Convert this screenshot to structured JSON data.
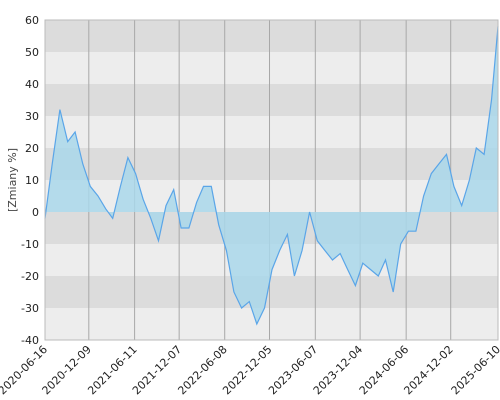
{
  "chart_data": {
    "type": "line",
    "y_label": "[Zmiany %]",
    "color": "#5aa5e8",
    "fill": "#a9d7ea",
    "grid": true,
    "x": [
      "2020-06-16",
      "2020-07-15",
      "2020-08-15",
      "2020-09-15",
      "2020-10-15",
      "2020-11-15",
      "2020-12-15",
      "2021-01-15",
      "2021-02-15",
      "2021-03-15",
      "2021-04-15",
      "2021-05-15",
      "2021-06-15",
      "2021-07-15",
      "2021-08-15",
      "2021-09-15",
      "2021-10-15",
      "2021-11-15",
      "2021-12-15",
      "2022-01-15",
      "2022-02-15",
      "2022-03-15",
      "2022-04-15",
      "2022-05-15",
      "2022-06-15",
      "2022-07-15",
      "2022-08-15",
      "2022-09-15",
      "2022-10-15",
      "2022-11-15",
      "2022-12-15",
      "2023-01-15",
      "2023-02-15",
      "2023-03-15",
      "2023-04-15",
      "2023-05-15",
      "2023-06-15",
      "2023-07-15",
      "2023-08-15",
      "2023-09-15",
      "2023-10-15",
      "2023-11-15",
      "2023-12-15",
      "2024-01-15",
      "2024-02-15",
      "2024-03-15",
      "2024-04-15",
      "2024-05-15",
      "2024-06-15",
      "2024-07-15",
      "2024-08-15",
      "2024-09-15",
      "2024-10-15",
      "2024-11-15",
      "2024-12-15",
      "2025-01-15",
      "2025-02-15",
      "2025-03-15",
      "2025-04-15",
      "2025-05-15",
      "2025-06-10"
    ],
    "values": [
      -2,
      15,
      32,
      22,
      25,
      15,
      8,
      5,
      1,
      -2,
      8,
      17,
      12,
      4,
      -2,
      -9,
      2,
      7,
      -5,
      -5,
      3,
      8,
      8,
      -4,
      -12,
      -25,
      -30,
      -28,
      -35,
      -30,
      -18,
      -12,
      -7,
      -20,
      -12,
      0,
      -9,
      -12,
      -15,
      -13,
      -18,
      -23,
      -16,
      -18,
      -20,
      -15,
      -25,
      -10,
      -6,
      -6,
      5,
      12,
      15,
      18,
      8,
      2,
      10,
      20,
      18,
      35,
      58
    ],
    "xlim": [
      "2020-06-16",
      "2025-06-10"
    ],
    "xticks": [
      "2020-06-16",
      "2020-12-09",
      "2021-06-11",
      "2021-12-07",
      "2022-06-08",
      "2022-12-05",
      "2023-06-07",
      "2023-12-04",
      "2024-06-06",
      "2024-12-02",
      "2025-06-10"
    ],
    "ylim": [
      -40,
      60
    ],
    "yticks": [
      -40,
      -30,
      -20,
      -10,
      0,
      10,
      20,
      30,
      40,
      50,
      60
    ]
  }
}
